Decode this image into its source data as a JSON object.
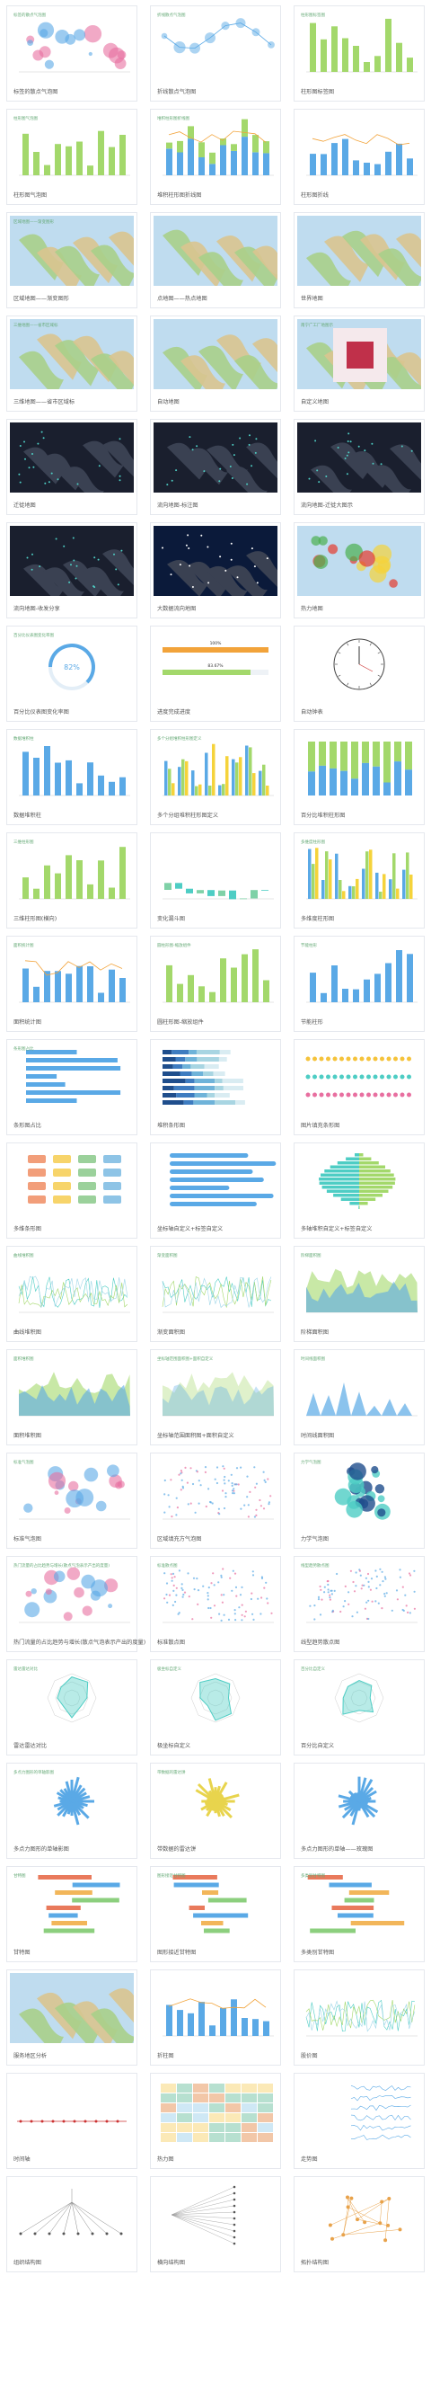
{
  "cards": [
    {
      "title": "标签的散点气泡图"
    },
    {
      "title": "折线散点气泡图"
    },
    {
      "title": "柱形图标签图"
    },
    {
      "title": "柱形图气泡图"
    },
    {
      "title": "堆积柱形图折线图"
    },
    {
      "title": "柱形图折线"
    },
    {
      "title": "区域地图——渐变图形"
    },
    {
      "title": "点地图——热点地图"
    },
    {
      "title": "世界地图"
    },
    {
      "title": "三维地图——省市区域标"
    },
    {
      "title": "自动地图"
    },
    {
      "title": "自定义地图"
    },
    {
      "title": "迁徙地图"
    },
    {
      "title": "流向地图-标注图"
    },
    {
      "title": "流向地图-迁徙大图示"
    },
    {
      "title": "流向地图-收发分享"
    },
    {
      "title": "大数据流向地图"
    },
    {
      "title": "热力地图"
    },
    {
      "title": "百分比仪表图变化率图"
    },
    {
      "title": "进度完成进度"
    },
    {
      "title": "自动钟表"
    },
    {
      "title": "数据堆积柱"
    },
    {
      "title": "多个分组堆积柱形图定义"
    },
    {
      "title": "百分比堆积柱形图"
    },
    {
      "title": "三维柱形图(横向)"
    },
    {
      "title": "变化漏斗图"
    },
    {
      "title": "多维度柱形图"
    },
    {
      "title": "面积统计图"
    },
    {
      "title": "圆柱形图-缩放组件"
    },
    {
      "title": "节能柱形"
    },
    {
      "title": "条形图占比"
    },
    {
      "title": "堆积条形图"
    },
    {
      "title": "图片填充条形图"
    },
    {
      "title": "多维条形图"
    },
    {
      "title": "坐标轴自定义+标签自定义"
    },
    {
      "title": "多轴堆积自定义+标签自定义"
    },
    {
      "title": "曲线堆积图"
    },
    {
      "title": "渐变面积图"
    },
    {
      "title": "阶梯面积图"
    },
    {
      "title": "面积堆积图"
    },
    {
      "title": "坐标轴范围面积图+面积自定义"
    },
    {
      "title": "时间线面积图"
    },
    {
      "title": "标准气泡图"
    },
    {
      "title": "区域填充方气泡图"
    },
    {
      "title": "力学气泡图"
    },
    {
      "title": "热门流量的占比趋势与增长(散点气泡表示产出的度量)"
    },
    {
      "title": "标准散点图"
    },
    {
      "title": "线型趋势散点图"
    },
    {
      "title": "雷达雷达对比"
    },
    {
      "title": "极坐标自定义"
    },
    {
      "title": "百分比自定义"
    },
    {
      "title": "多点力图形的单轴影图"
    },
    {
      "title": "带数据的雷达饼"
    },
    {
      "title": "多点力图形的单轴——玫瑰图"
    },
    {
      "title": "甘特图"
    },
    {
      "title": "图形接近甘特图"
    },
    {
      "title": "多类别甘特图"
    },
    {
      "title": "服务地区分析"
    },
    {
      "title": "折柱图"
    },
    {
      "title": "股价图"
    },
    {
      "title": "时间轴"
    },
    {
      "title": "热力图"
    },
    {
      "title": "走势图"
    },
    {
      "title": "组织结构图"
    },
    {
      "title": "横向结构图"
    },
    {
      "title": "拓扑结构图"
    }
  ],
  "thumbs": [
    {
      "label": "标签的散点气泡图"
    },
    {
      "label": "折线散点气泡图"
    },
    {
      "label": "柱形图标签图"
    },
    {
      "label": "柱形图气泡图"
    },
    {
      "label": "堆积柱形图折线图"
    },
    {
      "label": ""
    },
    {
      "label": "区域地图——渐变图形"
    },
    {
      "label": ""
    },
    {
      "label": ""
    },
    {
      "label": "三维地图——省市区域标"
    },
    {
      "label": ""
    },
    {
      "label": "南宁广工厂地图示"
    },
    {
      "label": ""
    },
    {
      "label": ""
    },
    {
      "label": ""
    },
    {
      "label": ""
    },
    {
      "label": ""
    },
    {
      "label": ""
    },
    {
      "label": "百分比仪表图变化率图"
    },
    {
      "label": ""
    },
    {
      "label": ""
    },
    {
      "label": "数据堆积柱"
    },
    {
      "label": "多个分组堆积柱形图定义"
    },
    {
      "label": ""
    },
    {
      "label": "三维柱形图"
    },
    {
      "label": ""
    },
    {
      "label": "多维度柱形图"
    },
    {
      "label": "面积统计图"
    },
    {
      "label": "圆柱形图-缩放组件"
    },
    {
      "label": "节能柱形"
    },
    {
      "label": "条形图占比"
    },
    {
      "label": ""
    },
    {
      "label": ""
    },
    {
      "label": ""
    },
    {
      "label": ""
    },
    {
      "label": ""
    },
    {
      "label": "曲线堆积图"
    },
    {
      "label": "渐变面积图"
    },
    {
      "label": "阶梯面积图"
    },
    {
      "label": "面积堆积图"
    },
    {
      "label": "坐标轴范围面积图+面积自定义"
    },
    {
      "label": "时间线面积图"
    },
    {
      "label": "标准气泡图"
    },
    {
      "label": ""
    },
    {
      "label": "力学气泡图"
    },
    {
      "label": "热门流量的占比趋势与增长(散点气泡表示产出的度量)"
    },
    {
      "label": "标准散点图"
    },
    {
      "label": "线型趋势散点图"
    },
    {
      "label": "雷达雷达对比"
    },
    {
      "label": "极坐标自定义"
    },
    {
      "label": "百分比自定义"
    },
    {
      "label": "多点力图形的单轴影图"
    },
    {
      "label": "带数据的雷达饼"
    },
    {
      "label": ""
    },
    {
      "label": "甘特图"
    },
    {
      "label": "图形接近甘特图"
    },
    {
      "label": "多类别甘特图"
    },
    {
      "label": ""
    },
    {
      "label": ""
    },
    {
      "label": ""
    },
    {
      "label": ""
    },
    {
      "label": ""
    },
    {
      "label": ""
    },
    {
      "label": ""
    },
    {
      "label": ""
    },
    {
      "label": ""
    }
  ],
  "gauge": {
    "value": "82%"
  },
  "progress": {
    "a": "100%",
    "b": "83.67%"
  },
  "colors": {
    "blue": "#5aa9e6",
    "green": "#a3d86b",
    "teal": "#4ecdc4",
    "pink": "#e86fa0",
    "dark": "#1a1f2e",
    "border": "#e5e8ee"
  }
}
